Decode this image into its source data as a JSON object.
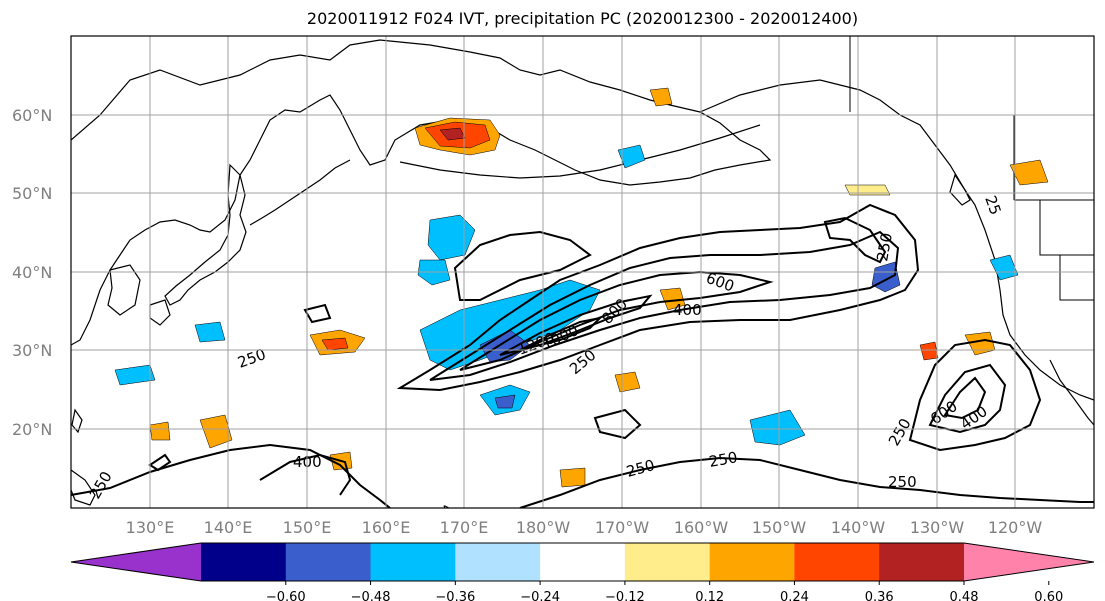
{
  "title": "2020011912 F024 IVT, precipitation PC (2020012300 - 2020012400)",
  "map": {
    "projection": "PlateCarree",
    "extent_lon": [
      120,
      250
    ],
    "extent_lat": [
      10,
      70
    ],
    "lat_labels": [
      "20°N",
      "30°N",
      "40°N",
      "50°N",
      "60°N"
    ],
    "lon_labels": [
      "130°E",
      "140°E",
      "150°E",
      "160°E",
      "170°E",
      "180°W",
      "170°W",
      "160°W",
      "150°W",
      "140°W",
      "130°W",
      "120°W"
    ],
    "grid": true,
    "gridline_color": "#a0a0a0",
    "tick_label_color": "#7f7f7f"
  },
  "contours": {
    "field": "IVT",
    "color": "#000000",
    "labels": [
      "250",
      "250",
      "400",
      "600",
      "800",
      "1000",
      "1200",
      "250",
      "400",
      "600",
      "250",
      "250",
      "250",
      "250",
      "400",
      "400",
      "250",
      "25"
    ]
  },
  "colorbar": {
    "ticks": [
      "−0.60",
      "−0.48",
      "−0.36",
      "−0.24",
      "−0.12",
      "0.12",
      "0.24",
      "0.36",
      "0.48",
      "0.60"
    ],
    "colors": [
      "#9932cc",
      "#00008b",
      "#3a5fcd",
      "#00bfff",
      "#b0e2ff",
      "#ffffff",
      "#ffec8b",
      "#ffa500",
      "#ff4500",
      "#b22222",
      "#ff82ab"
    ],
    "extend": "both"
  }
}
